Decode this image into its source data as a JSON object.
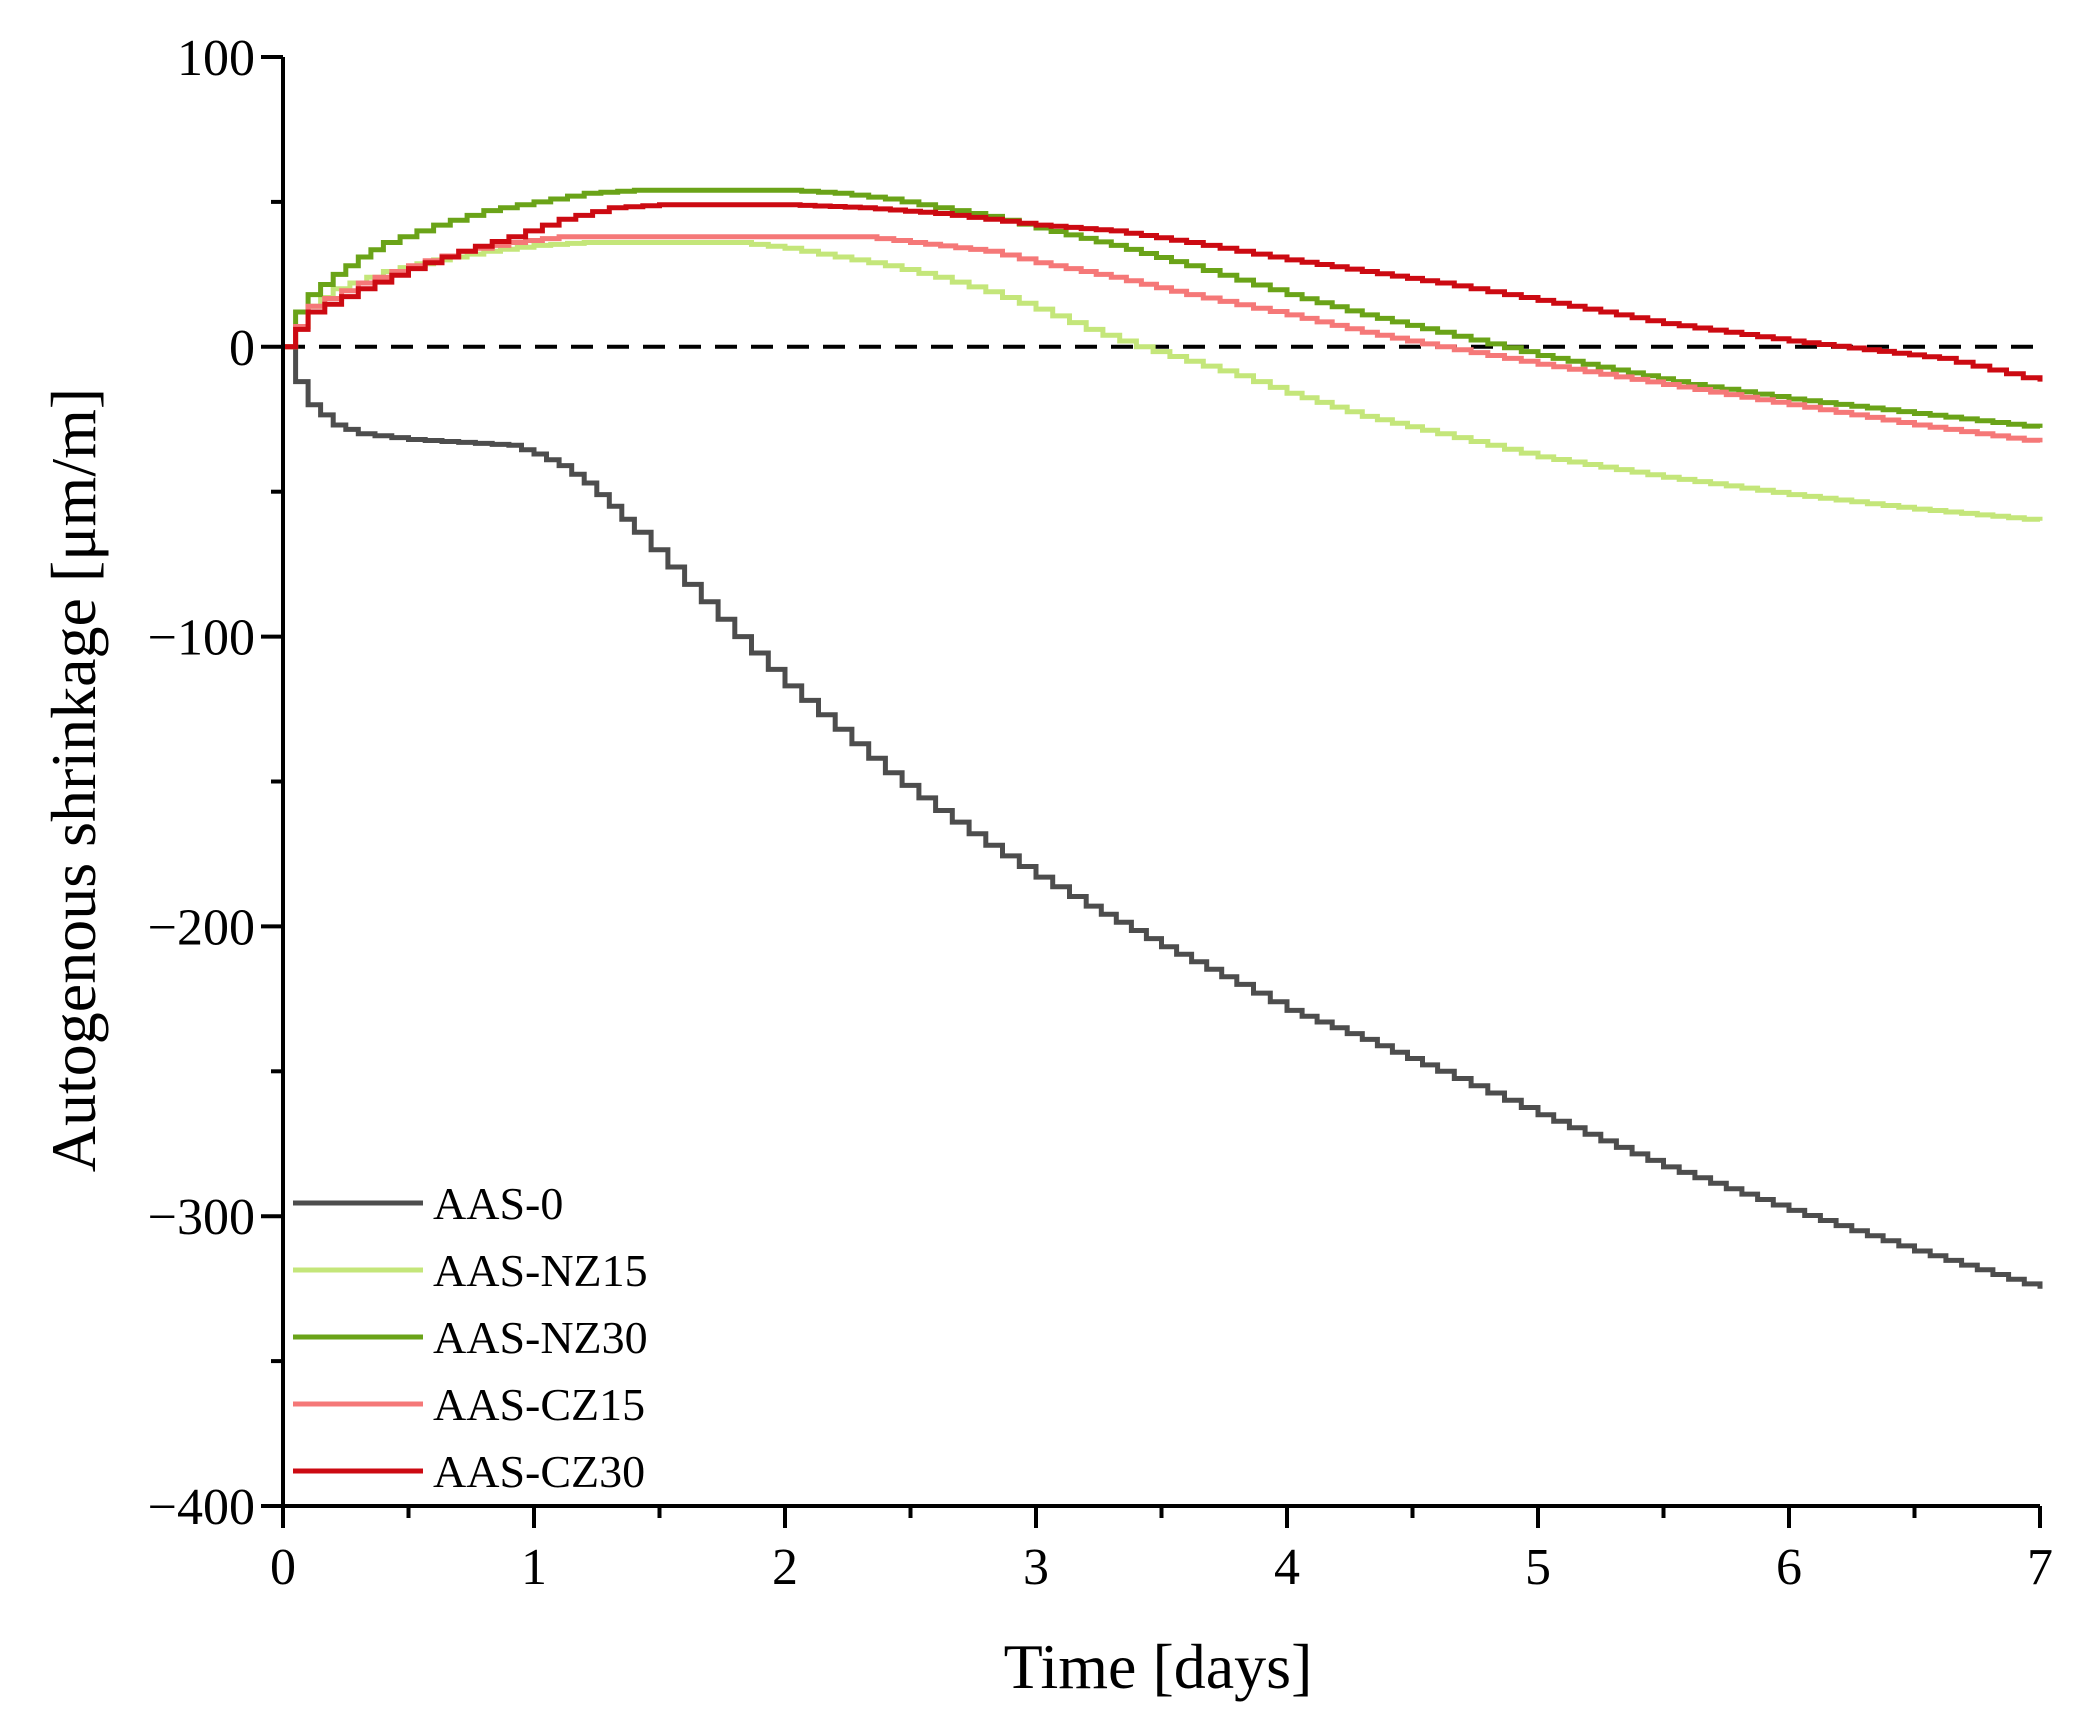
{
  "chart_data": {
    "type": "line",
    "title": "",
    "xlabel": "Time [days]",
    "ylabel": "Autogenous shrinkage [μm/m]",
    "xlim": [
      0,
      7
    ],
    "ylim": [
      -400,
      100
    ],
    "xticks": [
      0,
      1,
      2,
      3,
      4,
      5,
      6,
      7
    ],
    "yticks": [
      100,
      0,
      -100,
      -200,
      -300,
      -400
    ],
    "ytick_labels": [
      "100",
      "0",
      "−100",
      "−200",
      "−300",
      "−400"
    ],
    "reference_line": {
      "y": 0,
      "style": "dashed",
      "color": "#000000"
    },
    "legend_position": "bottom-left",
    "series": [
      {
        "name": "AAS-0",
        "color": "#4d4d4d",
        "x": [
          0,
          0.05,
          0.1,
          0.2,
          0.3,
          0.5,
          0.7,
          0.9,
          1.0,
          1.1,
          1.2,
          1.3,
          1.4,
          1.6,
          1.8,
          2.0,
          2.2,
          2.4,
          2.6,
          2.8,
          3.0,
          3.2,
          3.5,
          3.8,
          4.0,
          4.3,
          4.6,
          5.0,
          5.5,
          6.0,
          6.5,
          7.0
        ],
        "y": [
          0,
          -12,
          -20,
          -27,
          -30,
          -32,
          -33,
          -34,
          -37,
          -41,
          -47,
          -55,
          -64,
          -82,
          -100,
          -117,
          -132,
          -147,
          -160,
          -172,
          -183,
          -193,
          -207,
          -220,
          -229,
          -239,
          -250,
          -265,
          -283,
          -298,
          -312,
          -325
        ]
      },
      {
        "name": "AAS-NZ15",
        "color": "#c4e67a",
        "x": [
          0,
          0.1,
          0.2,
          0.4,
          0.6,
          0.8,
          1.0,
          1.2,
          1.4,
          1.6,
          1.8,
          2.0,
          2.2,
          2.4,
          2.6,
          2.8,
          3.0,
          3.2,
          3.4,
          3.6,
          3.8,
          4.0,
          4.3,
          4.6,
          5.0,
          5.5,
          6.0,
          6.5,
          7.0
        ],
        "y": [
          0,
          14,
          20,
          26,
          30,
          33,
          35,
          36,
          36,
          36,
          36,
          34,
          31,
          28,
          24,
          19,
          13,
          6,
          0,
          -5,
          -10,
          -16,
          -24,
          -30,
          -38,
          -45,
          -51,
          -56,
          -60
        ]
      },
      {
        "name": "AAS-NZ30",
        "color": "#6aa318",
        "x": [
          0,
          0.05,
          0.1,
          0.2,
          0.3,
          0.4,
          0.6,
          0.8,
          1.0,
          1.2,
          1.4,
          1.6,
          1.8,
          2.0,
          2.2,
          2.4,
          2.6,
          2.8,
          3.0,
          3.3,
          3.6,
          4.0,
          4.3,
          4.6,
          4.8,
          5.0,
          5.3,
          5.6,
          6.0,
          6.5,
          7.0
        ],
        "y": [
          0,
          12,
          18,
          25,
          31,
          36,
          42,
          47,
          50,
          53,
          54,
          54,
          54,
          54,
          53,
          51,
          48,
          45,
          41,
          35,
          28,
          18,
          11,
          5,
          1,
          -3,
          -8,
          -13,
          -18,
          -23,
          -28
        ]
      },
      {
        "name": "AAS-CZ15",
        "color": "#f57878",
        "x": [
          0,
          0.1,
          0.3,
          0.5,
          0.7,
          0.9,
          1.1,
          1.3,
          1.5,
          1.7,
          2.0,
          2.3,
          2.5,
          2.8,
          3.0,
          3.3,
          3.6,
          4.0,
          4.3,
          4.6,
          5.0,
          5.5,
          6.0,
          6.5,
          7.0
        ],
        "y": [
          0,
          14,
          22,
          28,
          33,
          36,
          38,
          38,
          38,
          38,
          38,
          38,
          36,
          33,
          29,
          24,
          18,
          11,
          5,
          0,
          -6,
          -13,
          -20,
          -27,
          -33
        ]
      },
      {
        "name": "AAS-CZ30",
        "color": "#cc0a12",
        "x": [
          0,
          0.1,
          0.3,
          0.5,
          0.7,
          0.9,
          1.1,
          1.3,
          1.5,
          1.7,
          2.0,
          2.3,
          2.6,
          2.8,
          3.0,
          3.3,
          3.6,
          4.0,
          4.3,
          4.6,
          5.0,
          5.5,
          6.0,
          6.3,
          6.6,
          7.0
        ],
        "y": [
          0,
          12,
          20,
          27,
          33,
          38,
          44,
          48,
          49,
          49,
          49,
          48,
          46,
          44,
          42,
          40,
          36,
          30,
          26,
          22,
          16,
          8,
          2,
          -1,
          -4,
          -12
        ]
      }
    ]
  }
}
